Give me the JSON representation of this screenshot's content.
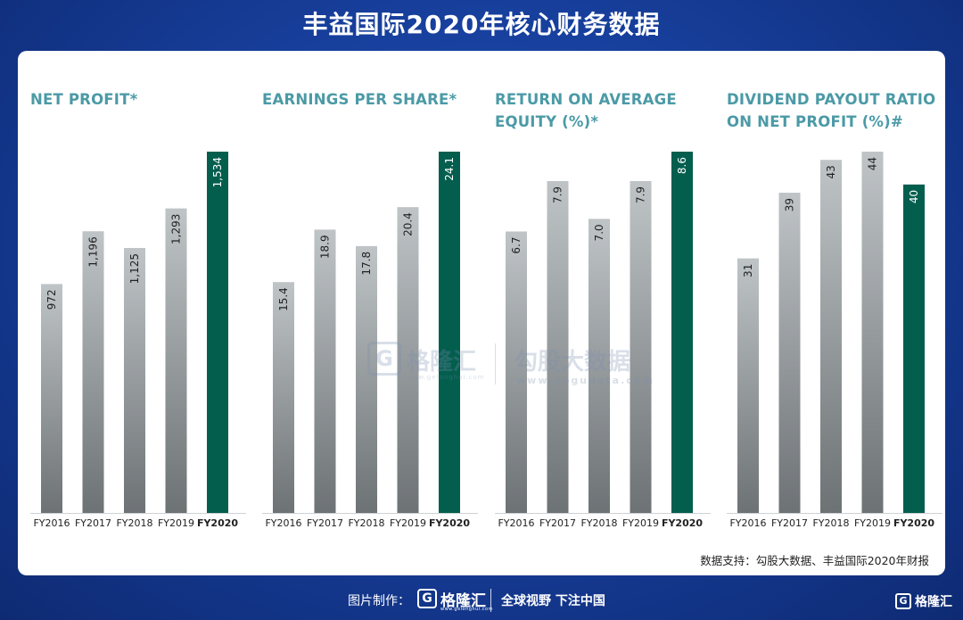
{
  "title": "丰益国际2020年核心财务数据",
  "source": "数据支持：勾股大数据、丰益国际2020年财报",
  "watermark": {
    "logo_letter": "G",
    "brand": "格隆汇",
    "brand_sub": "www.gelonghui.com",
    "site": "勾股大数据",
    "url": "www.gogudata.com"
  },
  "footer": {
    "credit": "图片制作：",
    "logo_letter": "G",
    "brand": "格隆汇",
    "brand_sub": "www.gelonghui.com",
    "slogan": "全球视野 下注中国",
    "corner_brand": "格隆汇"
  },
  "colors": {
    "highlight": "#045e4e",
    "bar_top": "#bfc4c7",
    "bar_bottom": "#6d7275",
    "title_teal": "#4b9aa6"
  },
  "chart_data": [
    {
      "type": "bar",
      "title": [
        "NET PROFIT*"
      ],
      "categories": [
        "FY2016",
        "FY2017",
        "FY2018",
        "FY2019",
        "FY2020"
      ],
      "values": [
        972,
        1196,
        1125,
        1293,
        1534
      ],
      "value_labels": [
        "972",
        "1,196",
        "1,125",
        "1,293",
        "1,534"
      ],
      "highlight_index": 4
    },
    {
      "type": "bar",
      "title": [
        "EARNINGS PER SHARE*"
      ],
      "categories": [
        "FY2016",
        "FY2017",
        "FY2018",
        "FY2019",
        "FY2020"
      ],
      "values": [
        15.4,
        18.9,
        17.8,
        20.4,
        24.1
      ],
      "value_labels": [
        "15.4",
        "18.9",
        "17.8",
        "20.4",
        "24.1"
      ],
      "highlight_index": 4
    },
    {
      "type": "bar",
      "title": [
        "RETURN ON AVERAGE",
        "EQUITY (%)*"
      ],
      "categories": [
        "FY2016",
        "FY2017",
        "FY2018",
        "FY2019",
        "FY2020"
      ],
      "values": [
        6.7,
        7.9,
        7.0,
        7.9,
        8.6
      ],
      "value_labels": [
        "6.7",
        "7.9",
        "7.0",
        "7.9",
        "8.6"
      ],
      "highlight_index": 4
    },
    {
      "type": "bar",
      "title": [
        "DIVIDEND PAYOUT RATIO",
        "ON NET PROFIT (%)#"
      ],
      "categories": [
        "FY2016",
        "FY2017",
        "FY2018",
        "FY2019",
        "FY2020"
      ],
      "values": [
        31,
        39,
        43,
        44,
        40
      ],
      "value_labels": [
        "31",
        "39",
        "43",
        "44",
        "40"
      ],
      "highlight_index": 4
    }
  ]
}
